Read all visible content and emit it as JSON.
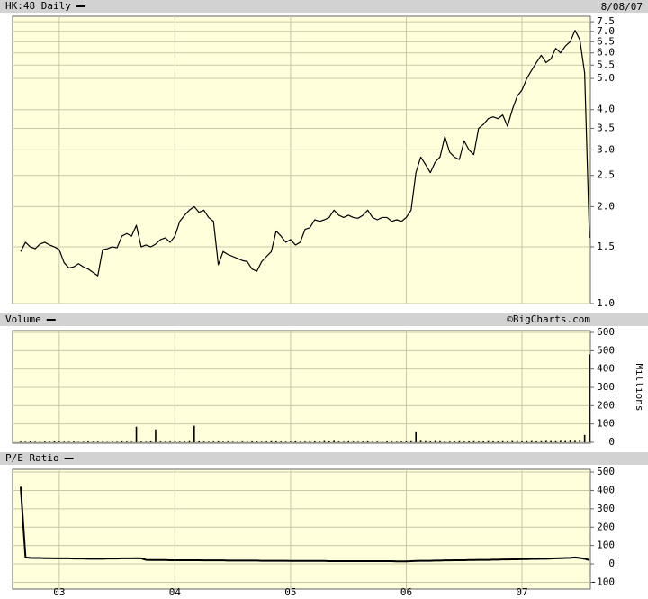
{
  "chart_data": [
    {
      "type": "line",
      "date": "8/08/07",
      "log_scale": true,
      "grid": true,
      "ylim": [
        1,
        7.8
      ],
      "yticks": [
        {
          "value": 1,
          "label": "1.0"
        },
        1.5,
        {
          "value": 2,
          "label": "2.0"
        },
        2.5,
        {
          "value": 3,
          "label": "3.0"
        },
        3.5,
        {
          "value": 4,
          "label": "4.0"
        },
        {
          "value": 5,
          "label": "5.0"
        },
        5.5,
        {
          "value": 6,
          "label": "6.0"
        },
        6.5,
        {
          "value": 7,
          "label": "7.0"
        },
        7.5
      ],
      "series": [
        {
          "name": "HK:48 Daily",
          "color": "#000000",
          "values": [
            1.45,
            1.55,
            1.5,
            1.48,
            1.53,
            1.55,
            1.52,
            1.5,
            1.47,
            1.34,
            1.29,
            1.3,
            1.33,
            1.3,
            1.28,
            1.25,
            1.22,
            1.47,
            1.48,
            1.5,
            1.49,
            1.62,
            1.65,
            1.62,
            1.75,
            1.5,
            1.52,
            1.5,
            1.53,
            1.58,
            1.6,
            1.55,
            1.62,
            1.8,
            1.88,
            1.95,
            2.0,
            1.92,
            1.95,
            1.85,
            1.8,
            1.32,
            1.45,
            1.42,
            1.4,
            1.38,
            1.36,
            1.35,
            1.28,
            1.26,
            1.35,
            1.4,
            1.45,
            1.68,
            1.62,
            1.55,
            1.58,
            1.52,
            1.55,
            1.7,
            1.72,
            1.82,
            1.8,
            1.82,
            1.85,
            1.95,
            1.88,
            1.85,
            1.88,
            1.85,
            1.84,
            1.88,
            1.95,
            1.85,
            1.82,
            1.85,
            1.85,
            1.8,
            1.82,
            1.8,
            1.85,
            1.95,
            2.55,
            2.85,
            2.7,
            2.55,
            2.75,
            2.85,
            3.3,
            2.95,
            2.85,
            2.8,
            3.2,
            3.0,
            2.9,
            3.5,
            3.6,
            3.75,
            3.8,
            3.75,
            3.85,
            3.55,
            4.0,
            4.4,
            4.6,
            5.0,
            5.3,
            5.6,
            5.9,
            5.6,
            5.75,
            6.2,
            6.0,
            6.3,
            6.5,
            7.05,
            6.6,
            5.2,
            1.6
          ]
        }
      ]
    },
    {
      "type": "bar",
      "source": "©BigCharts.com",
      "y_label": "Millions",
      "grid": true,
      "ylim": [
        -5,
        610
      ],
      "yticks": [
        0,
        100,
        200,
        300,
        400,
        500,
        600
      ],
      "series": [
        {
          "name": "Volume",
          "color": "#000000",
          "values": [
            4,
            3,
            5,
            3,
            2,
            4,
            3,
            5,
            4,
            3,
            3,
            4,
            2,
            3,
            5,
            3,
            4,
            3,
            2,
            4,
            3,
            5,
            4,
            3,
            85,
            4,
            3,
            5,
            70,
            4,
            3,
            4,
            5,
            3,
            4,
            6,
            90,
            5,
            4,
            3,
            4,
            5,
            3,
            4,
            3,
            2,
            4,
            3,
            5,
            4,
            3,
            4,
            6,
            5,
            4,
            3,
            4,
            5,
            3,
            4,
            6,
            5,
            4,
            7,
            5,
            8,
            4,
            3,
            5,
            4,
            3,
            4,
            5,
            3,
            4,
            3,
            5,
            4,
            3,
            4,
            5,
            6,
            55,
            8,
            6,
            5,
            7,
            6,
            5,
            4,
            5,
            6,
            4,
            5,
            6,
            4,
            5,
            6,
            5,
            4,
            6,
            5,
            7,
            6,
            5,
            6,
            7,
            5,
            6,
            8,
            7,
            6,
            8,
            7,
            9,
            8,
            12,
            40,
            480
          ]
        }
      ]
    },
    {
      "type": "line",
      "grid": true,
      "ylim": [
        -137,
        515
      ],
      "yticks": [
        -100,
        0,
        100,
        200,
        300,
        400,
        500
      ],
      "categories": [
        null,
        null,
        null,
        null,
        null,
        null,
        null,
        null,
        "03",
        null,
        null,
        null,
        null,
        null,
        null,
        null,
        null,
        null,
        null,
        null,
        null,
        null,
        null,
        null,
        null,
        null,
        null,
        null,
        null,
        null,
        null,
        null,
        "04",
        null,
        null,
        null,
        null,
        null,
        null,
        null,
        null,
        null,
        null,
        null,
        null,
        null,
        null,
        null,
        null,
        null,
        null,
        null,
        null,
        null,
        null,
        null,
        "05",
        null,
        null,
        null,
        null,
        null,
        null,
        null,
        null,
        null,
        null,
        null,
        null,
        null,
        null,
        null,
        null,
        null,
        null,
        null,
        null,
        null,
        null,
        null,
        "06",
        null,
        null,
        null,
        null,
        null,
        null,
        null,
        null,
        null,
        null,
        null,
        null,
        null,
        null,
        null,
        null,
        null,
        null,
        null,
        null,
        null,
        null,
        null,
        "07",
        null,
        null,
        null,
        null,
        null,
        null,
        null,
        null,
        null,
        null,
        null,
        null,
        null,
        null
      ],
      "series": [
        {
          "name": "P/E Ratio",
          "color": "#000000",
          "values": [
            420,
            35,
            33,
            32,
            32,
            31,
            31,
            30,
            30,
            30,
            30,
            29,
            29,
            29,
            28,
            28,
            28,
            28,
            29,
            29,
            29,
            30,
            30,
            30,
            31,
            30,
            22,
            21,
            21,
            21,
            21,
            20,
            20,
            20,
            20,
            20,
            20,
            20,
            19,
            19,
            19,
            19,
            19,
            18,
            18,
            18,
            18,
            18,
            18,
            18,
            17,
            17,
            17,
            17,
            17,
            17,
            16,
            16,
            16,
            16,
            16,
            16,
            16,
            16,
            15,
            15,
            15,
            15,
            15,
            15,
            15,
            15,
            15,
            15,
            15,
            15,
            15,
            15,
            14,
            14,
            14,
            15,
            16,
            17,
            17,
            17,
            18,
            18,
            19,
            19,
            20,
            20,
            20,
            21,
            21,
            22,
            22,
            22,
            23,
            23,
            24,
            24,
            25,
            25,
            26,
            26,
            27,
            27,
            28,
            28,
            29,
            30,
            31,
            32,
            33,
            35,
            32,
            28,
            20
          ]
        }
      ]
    }
  ]
}
